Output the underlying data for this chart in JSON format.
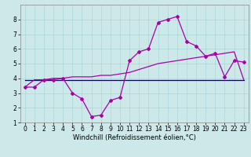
{
  "xlabel": "Windchill (Refroidissement éolien,°C)",
  "x": [
    0,
    1,
    2,
    3,
    4,
    5,
    6,
    7,
    8,
    9,
    10,
    11,
    12,
    13,
    14,
    15,
    16,
    17,
    18,
    19,
    20,
    21,
    22,
    23
  ],
  "y_main": [
    3.4,
    3.4,
    3.9,
    3.9,
    4.0,
    3.0,
    2.6,
    1.4,
    1.5,
    2.5,
    2.7,
    5.2,
    5.8,
    6.0,
    7.8,
    8.0,
    8.2,
    6.5,
    6.2,
    5.5,
    5.7,
    4.1,
    5.2,
    5.1
  ],
  "y_trend": [
    3.4,
    3.9,
    3.9,
    4.0,
    4.0,
    4.1,
    4.1,
    4.1,
    4.2,
    4.2,
    4.3,
    4.4,
    4.6,
    4.8,
    5.0,
    5.1,
    5.2,
    5.3,
    5.4,
    5.5,
    5.6,
    5.7,
    5.8,
    3.9
  ],
  "y_flat": [
    3.9,
    3.9,
    3.9,
    3.9,
    3.9,
    3.9,
    3.9,
    3.9,
    3.9,
    3.9,
    3.9,
    3.9,
    3.9,
    3.9,
    3.9,
    3.9,
    3.9,
    3.9,
    3.9,
    3.9,
    3.9,
    3.9,
    3.9,
    3.9
  ],
  "bg_color": "#cce8e8",
  "line_color": "#aa00aa",
  "flat_line_color": "#000055",
  "xlim": [
    -0.5,
    23.5
  ],
  "ylim": [
    1,
    9
  ],
  "xticks": [
    0,
    1,
    2,
    3,
    4,
    5,
    6,
    7,
    8,
    9,
    10,
    11,
    12,
    13,
    14,
    15,
    16,
    17,
    18,
    19,
    20,
    21,
    22,
    23
  ],
  "yticks": [
    1,
    2,
    3,
    4,
    5,
    6,
    7,
    8
  ],
  "tick_fontsize": 5.5,
  "xlabel_fontsize": 6.0,
  "grid_color": "#aad8d8",
  "marker": "D",
  "markersize": 2.0
}
